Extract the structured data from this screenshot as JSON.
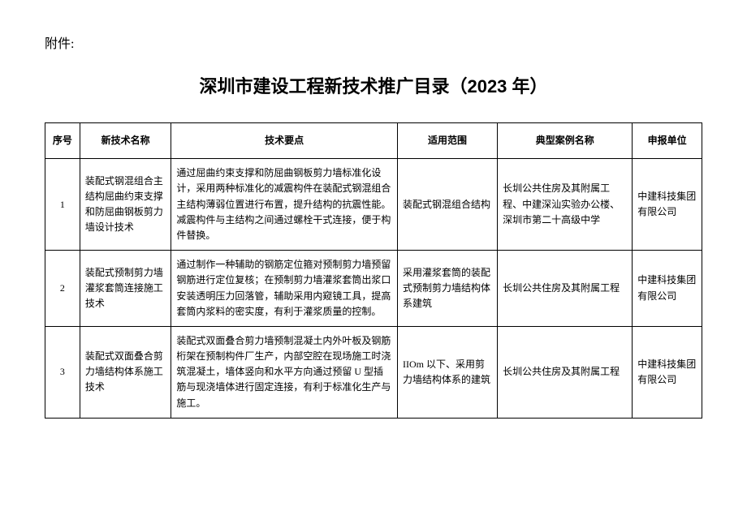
{
  "attachment_label": "附件:",
  "title": "深圳市建设工程新技术推广目录（2023 年）",
  "table": {
    "columns": [
      "序号",
      "新技术名称",
      "技术要点",
      "适用范围",
      "典型案例名称",
      "申报单位"
    ],
    "rows": [
      {
        "index": "1",
        "name": "装配式钢混组合主结构屈曲约束支撑和防屈曲钢板剪力墙设计技术",
        "points": "通过屈曲约束支撑和防屈曲钢板剪力墙标准化设计，采用两种标准化的减震构件在装配式钢混组合主结构薄弱位置进行布置，提升结构的抗震性能。减震构件与主结构之间通过螺栓干式连接，便于构件替换。",
        "scope": "装配式钢混组合结构",
        "case": "长圳公共住房及其附属工程、中建深汕实验办公楼、深圳市第二十高级中学",
        "unit": "中建科技集团有限公司"
      },
      {
        "index": "2",
        "name": "装配式预制剪力墙灌浆套筒连接施工技术",
        "points": "通过制作一种辅助的钢筋定位箍对预制剪力墙预留钢筋进行定位复核；在预制剪力墙灌浆套筒出浆口安装透明压力回落管，辅助采用内窥镜工具，提高套筒内浆料的密实度，有利于灌浆质量的控制。",
        "scope": "采用灌浆套筒的装配式预制剪力墙结构体系建筑",
        "case": "长圳公共住房及其附属工程",
        "unit": "中建科技集团有限公司"
      },
      {
        "index": "3",
        "name": "装配式双面叠合剪力墙结构体系施工技术",
        "points": "装配式双面叠合剪力墙预制混凝土内外叶板及钢筋桁架在预制构件厂生产，内部空腔在现场施工时浇筑混凝土，墙体竖向和水平方向通过预留 U 型插筋与现浇墙体进行固定连接，有利于标准化生产与施工。",
        "scope": "IIOm 以下、采用剪力墙结构体系的建筑",
        "case": "长圳公共住房及其附属工程",
        "unit": "中建科技集团有限公司"
      }
    ]
  }
}
